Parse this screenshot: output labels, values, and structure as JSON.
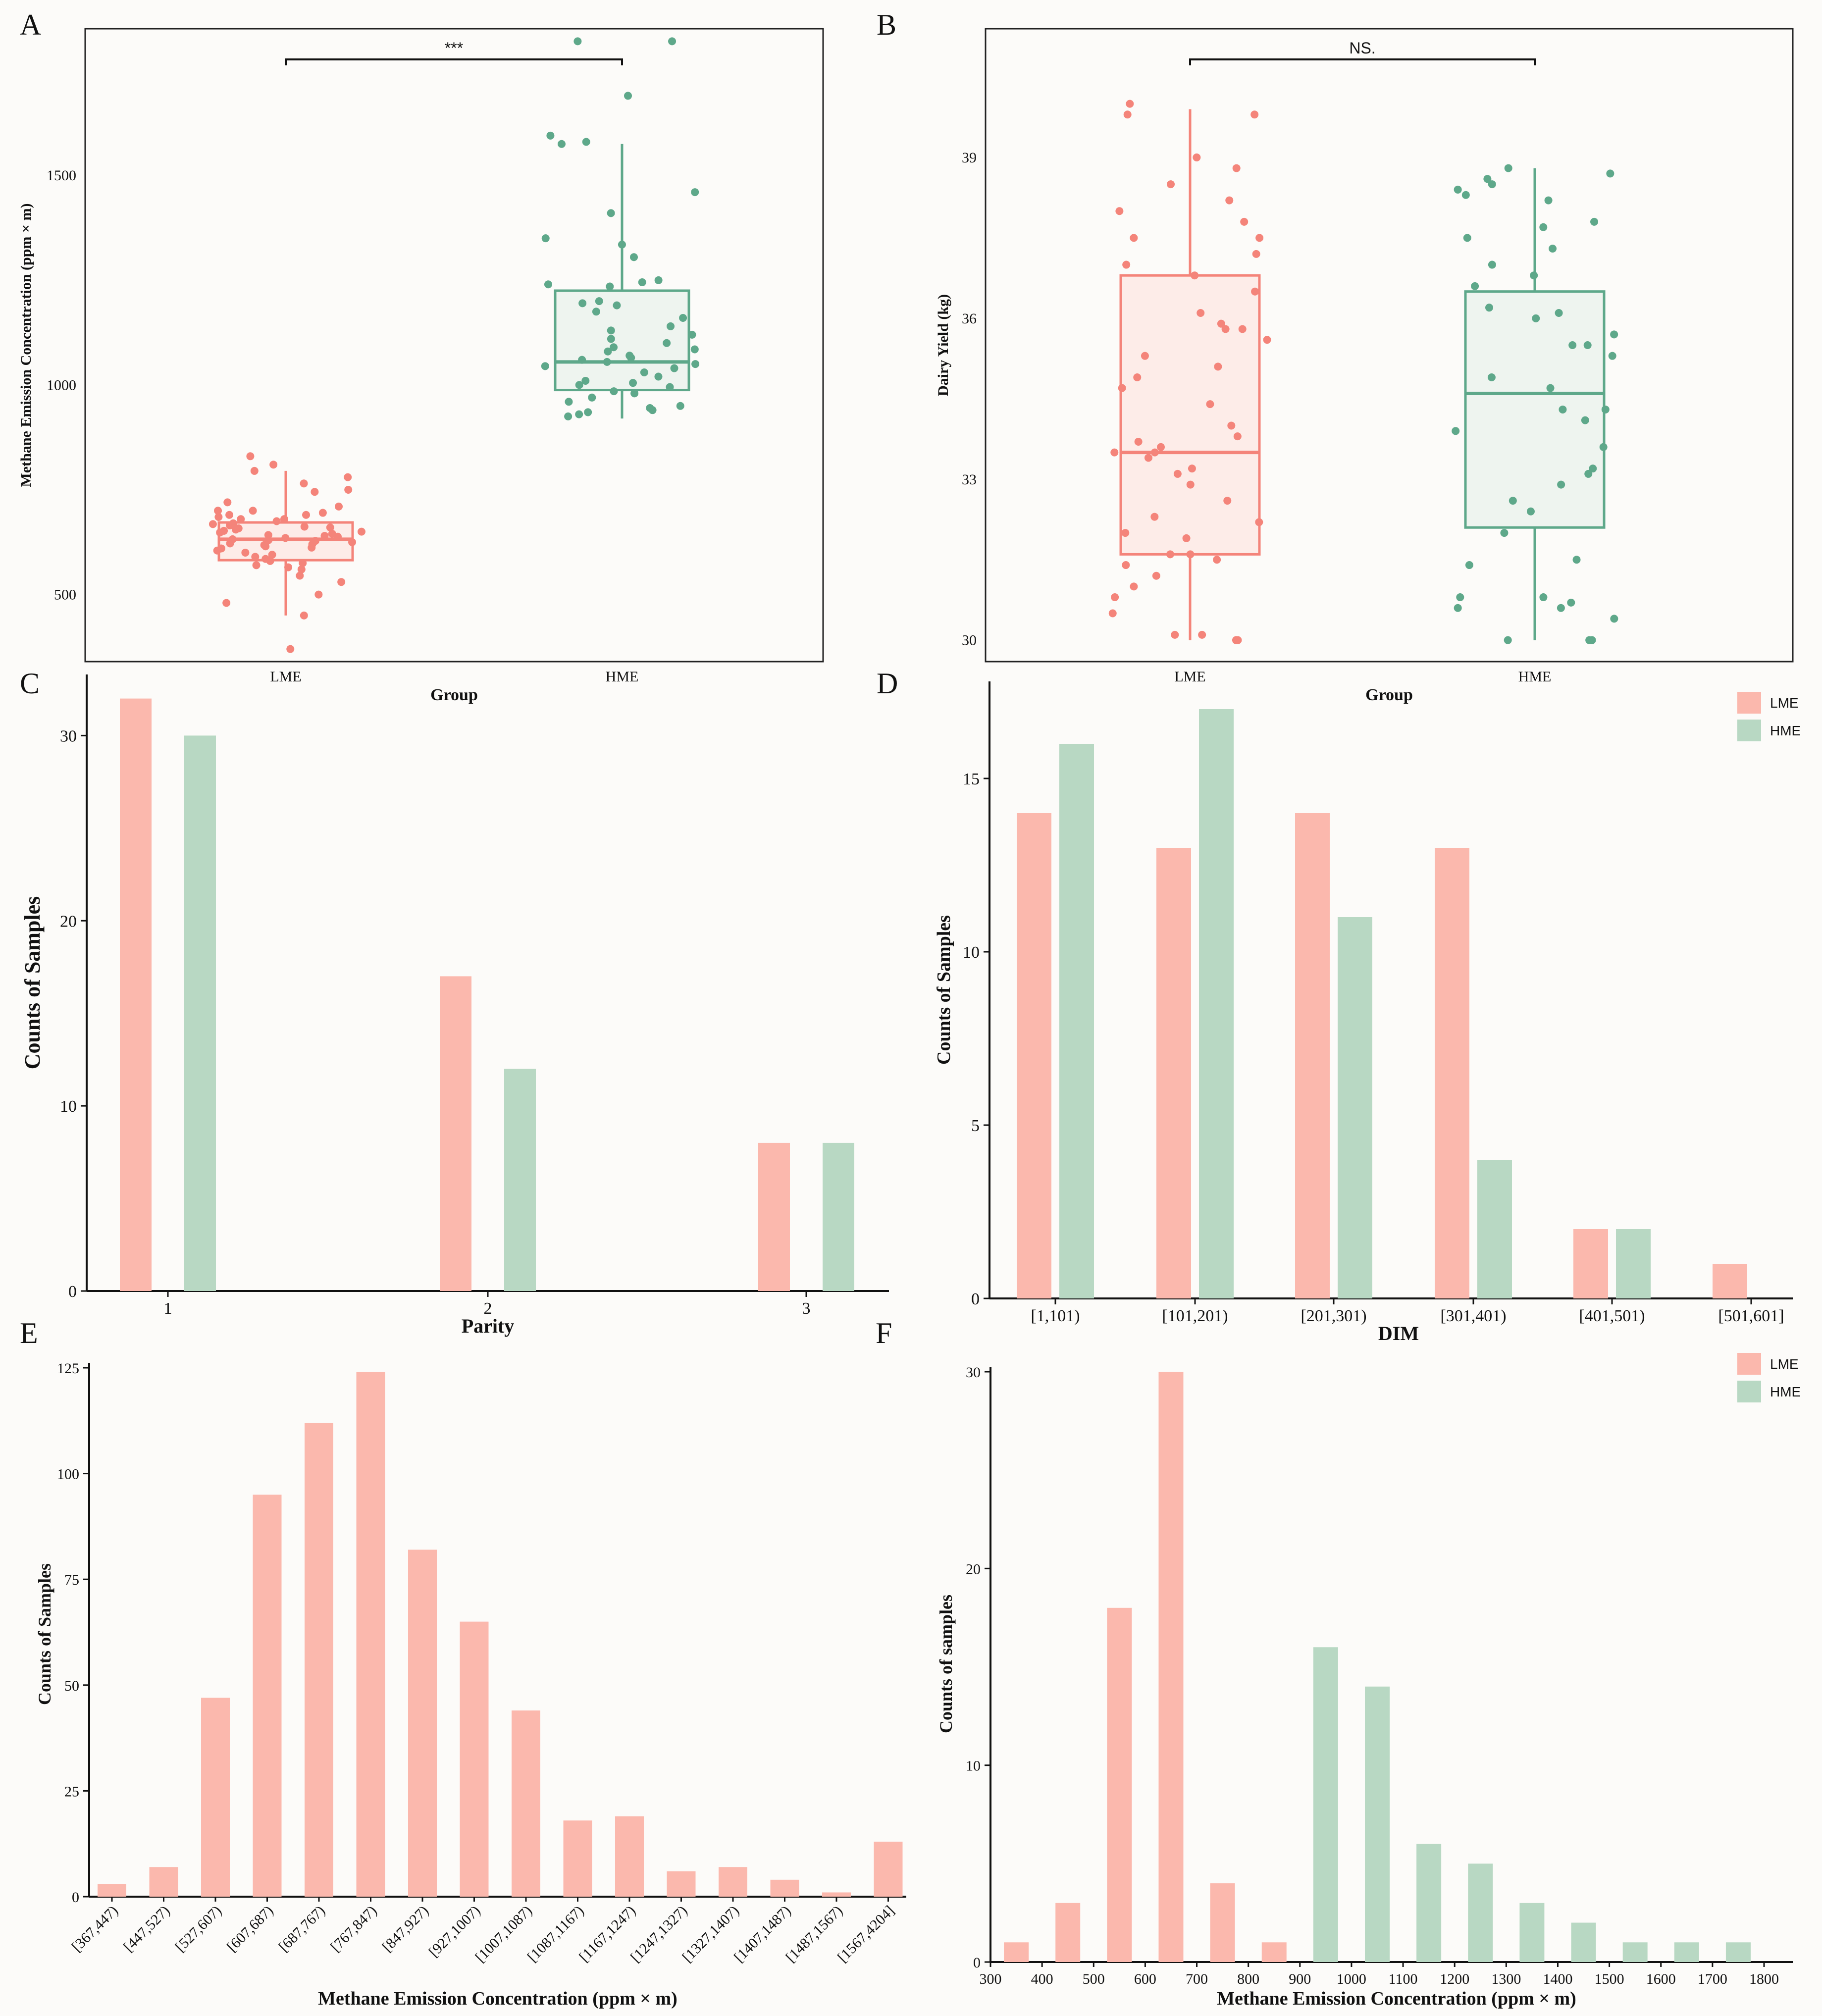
{
  "colors": {
    "lme": "#f4847a",
    "hme": "#5ea88a",
    "lme_bar": "#fbb8ad",
    "hme_bar": "#b8d8c3",
    "lme_fill": "#fdece8",
    "hme_fill": "#eef4ef"
  },
  "chart_data": [
    {
      "panel": "A",
      "type": "boxplot",
      "xlabel": "Group",
      "ylabel": "Methane Emission Concentration (ppm × m)",
      "yticks": [
        500,
        1000,
        1500
      ],
      "ylim": [
        340,
        1850
      ],
      "significance": "***",
      "categories": [
        "LME",
        "HME"
      ],
      "boxes": [
        {
          "group": "LME",
          "whisker_low": 450,
          "q1": 582,
          "median": 632,
          "q3": 672,
          "whisker_high": 795,
          "points": [
            830,
            810,
            795,
            780,
            765,
            750,
            745,
            720,
            710,
            700,
            700,
            695,
            690,
            690,
            685,
            680,
            680,
            675,
            670,
            668,
            665,
            662,
            660,
            658,
            655,
            652,
            650,
            648,
            645,
            642,
            640,
            638,
            635,
            632,
            630,
            628,
            625,
            622,
            620,
            618,
            615,
            612,
            610,
            605,
            600,
            595,
            590,
            585,
            580,
            575,
            570,
            565,
            560,
            545,
            530,
            500,
            480,
            450,
            370
          ]
        },
        {
          "group": "HME",
          "whisker_low": 920,
          "q1": 988,
          "median": 1055,
          "q3": 1225,
          "whisker_high": 1575,
          "points": [
            1820,
            1820,
            1690,
            1595,
            1575,
            1580,
            1460,
            1410,
            1350,
            1335,
            1305,
            1250,
            1245,
            1240,
            1235,
            1200,
            1195,
            1190,
            1175,
            1160,
            1140,
            1130,
            1120,
            1110,
            1100,
            1090,
            1085,
            1080,
            1070,
            1065,
            1060,
            1055,
            1050,
            1045,
            1040,
            1030,
            1020,
            1010,
            1005,
            1000,
            995,
            985,
            980,
            970,
            960,
            950,
            945,
            940,
            935,
            930,
            925
          ]
        }
      ]
    },
    {
      "panel": "B",
      "type": "boxplot",
      "xlabel": "Group",
      "ylabel": "Dairy Yield (kg)",
      "yticks": [
        30,
        33,
        36,
        39
      ],
      "ylim": [
        29.6,
        41.4
      ],
      "significance": "NS.",
      "categories": [
        "LME",
        "HME"
      ],
      "boxes": [
        {
          "group": "LME",
          "whisker_low": 30.0,
          "q1": 31.6,
          "median": 33.5,
          "q3": 36.8,
          "whisker_high": 39.9,
          "points": [
            40.0,
            39.8,
            39.8,
            39.0,
            38.8,
            38.5,
            38.2,
            38.0,
            37.8,
            37.5,
            37.5,
            37.2,
            37.0,
            36.8,
            36.5,
            36.1,
            35.9,
            35.8,
            35.8,
            35.6,
            35.3,
            35.1,
            34.9,
            34.7,
            34.4,
            34.0,
            33.8,
            33.7,
            33.6,
            33.5,
            33.5,
            33.4,
            33.2,
            33.1,
            32.9,
            32.6,
            32.3,
            32.2,
            32.0,
            31.9,
            31.6,
            31.6,
            31.5,
            31.4,
            31.2,
            31.0,
            30.8,
            30.5,
            30.1,
            30.1,
            30.0,
            30.0,
            30.0
          ]
        },
        {
          "group": "HME",
          "whisker_low": 30.0,
          "q1": 32.1,
          "median": 34.6,
          "q3": 36.5,
          "whisker_high": 38.8,
          "points": [
            38.8,
            38.7,
            38.6,
            38.5,
            38.4,
            38.3,
            38.2,
            37.8,
            37.7,
            37.5,
            37.3,
            37.0,
            36.8,
            36.6,
            36.2,
            36.1,
            36.0,
            35.7,
            35.5,
            35.5,
            35.3,
            34.9,
            34.7,
            34.3,
            34.3,
            34.1,
            33.9,
            33.6,
            33.2,
            33.1,
            32.9,
            32.6,
            32.4,
            32.0,
            31.5,
            31.4,
            30.8,
            30.8,
            30.7,
            30.6,
            30.6,
            30.4,
            30.0,
            30.0,
            30.0
          ]
        }
      ]
    },
    {
      "panel": "C",
      "type": "bar",
      "xlabel": "Parity",
      "ylabel": "Counts of Samples",
      "categories": [
        "1",
        "2",
        "3"
      ],
      "yticks": [
        0,
        10,
        20,
        30
      ],
      "ylim": [
        0,
        33.3
      ],
      "series": [
        {
          "name": "LME",
          "values": [
            32,
            17,
            8
          ]
        },
        {
          "name": "HME",
          "values": [
            30,
            12,
            8
          ]
        }
      ]
    },
    {
      "panel": "D",
      "type": "bar",
      "xlabel": "DIM",
      "ylabel": "Counts of Samples",
      "categories": [
        "[1,101)",
        "[101,201)",
        "[201,301)",
        "[301,401)",
        "[401,501)",
        "[501,601]"
      ],
      "yticks": [
        0,
        5,
        10,
        15
      ],
      "ylim": [
        0,
        17.8
      ],
      "legend": [
        "LME",
        "HME"
      ],
      "series": [
        {
          "name": "LME",
          "values": [
            14,
            13,
            14,
            13,
            2,
            1
          ]
        },
        {
          "name": "HME",
          "values": [
            16,
            17,
            11,
            4,
            2,
            0
          ]
        }
      ]
    },
    {
      "panel": "E",
      "type": "bar",
      "xlabel": "Methane Emission Concentration (ppm × m)",
      "ylabel": "Counts of Samples",
      "categories": [
        "[367,447)",
        "[447,527)",
        "[527,607)",
        "[607,687)",
        "[687,767)",
        "[767,847)",
        "[847,927)",
        "[927,1007)",
        "[1007,1087)",
        "[1087,1167)",
        "[1167,1247)",
        "[1247,1327)",
        "[1327,1407)",
        "[1407,1487)",
        "[1487,1567)",
        "[1567,4204]"
      ],
      "values": [
        3,
        7,
        47,
        95,
        112,
        124,
        82,
        65,
        44,
        18,
        19,
        6,
        7,
        4,
        1,
        13
      ],
      "yticks": [
        0,
        25,
        50,
        75,
        100,
        125
      ],
      "ylim": [
        0,
        125
      ]
    },
    {
      "panel": "F",
      "type": "bar",
      "xlabel": "Methane Emission Concentration (ppm × m)",
      "ylabel": "Counts of samples",
      "xticks": [
        300,
        400,
        500,
        600,
        700,
        800,
        900,
        1000,
        1100,
        1200,
        1300,
        1400,
        1500,
        1600,
        1700,
        1800
      ],
      "yticks": [
        0,
        10,
        20,
        30
      ],
      "ylim": [
        0,
        30
      ],
      "legend": [
        "LME",
        "HME"
      ],
      "series": [
        {
          "name": "LME",
          "x": [
            400,
            500,
            600,
            700,
            800,
            900
          ],
          "values": [
            1,
            3,
            18,
            30,
            4,
            1
          ]
        },
        {
          "name": "HME",
          "x": [
            1000,
            1100,
            1200,
            1300,
            1400,
            1500,
            1600,
            1700,
            1800
          ],
          "values": [
            16,
            14,
            6,
            5,
            3,
            2,
            1,
            1,
            1
          ]
        }
      ]
    }
  ]
}
